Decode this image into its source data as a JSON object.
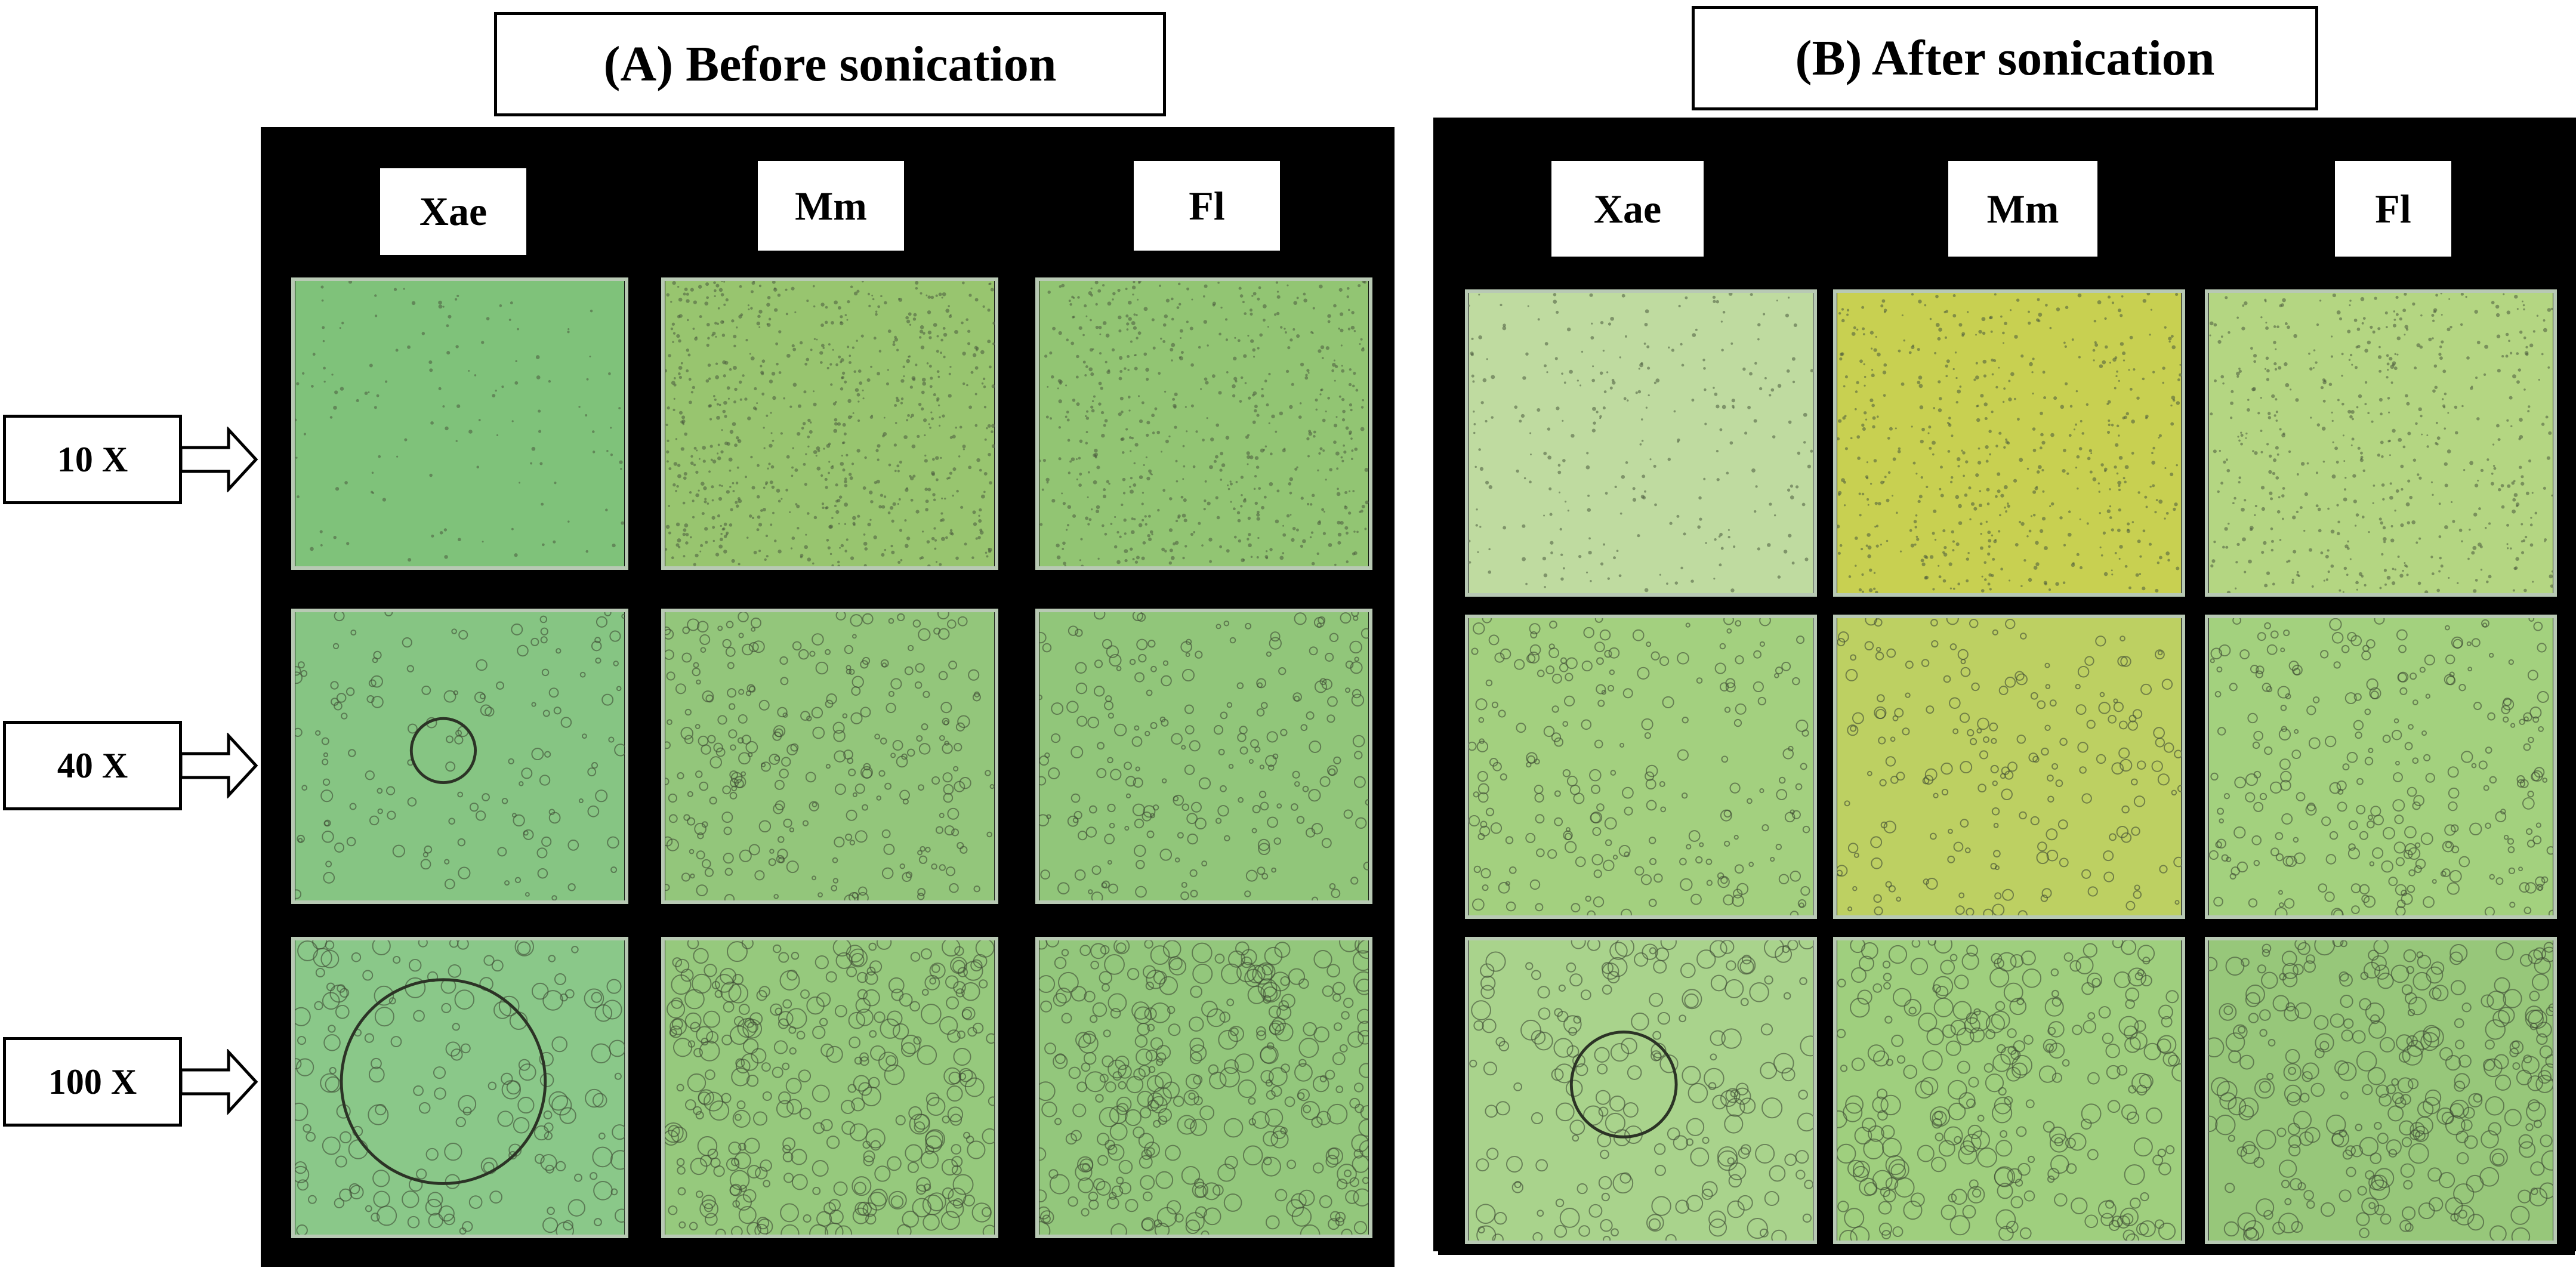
{
  "panels": [
    {
      "id": "A",
      "title": "(A) Before sonication",
      "columns": [
        {
          "label": "Xae",
          "tiles": [
            {
              "color": "#7fc27a",
              "density": 0.1
            },
            {
              "color": "#86c583",
              "density": 0.3
            },
            {
              "color": "#8ac889",
              "density": 0.4
            }
          ]
        },
        {
          "label": "Mm",
          "tiles": [
            {
              "color": "#98c56f",
              "density": 1.0
            },
            {
              "color": "#93c67b",
              "density": 0.8
            },
            {
              "color": "#96c97d",
              "density": 1.0
            }
          ]
        },
        {
          "label": "Fl",
          "tiles": [
            {
              "color": "#92c573",
              "density": 0.8
            },
            {
              "color": "#91c67a",
              "density": 0.6
            },
            {
              "color": "#93c77c",
              "density": 1.0
            }
          ]
        }
      ]
    },
    {
      "id": "B",
      "title": "(B) After sonication",
      "columns": [
        {
          "label": "Xae",
          "tiles": [
            {
              "color": "#bfdba0",
              "density": 0.3
            },
            {
              "color": "#a3d07f",
              "density": 0.6
            },
            {
              "color": "#a9d38c",
              "density": 0.5
            }
          ]
        },
        {
          "label": "Mm",
          "tiles": [
            {
              "color": "#c8d051",
              "density": 0.7
            },
            {
              "color": "#bdd062",
              "density": 0.5
            },
            {
              "color": "#9fcf7e",
              "density": 0.8
            }
          ]
        },
        {
          "label": "Fl",
          "tiles": [
            {
              "color": "#b4d682",
              "density": 0.7
            },
            {
              "color": "#a3d17e",
              "density": 0.8
            },
            {
              "color": "#97c77a",
              "density": 0.9
            }
          ]
        }
      ]
    }
  ],
  "magnifications": [
    "10 X",
    "40 X",
    "100 X"
  ]
}
